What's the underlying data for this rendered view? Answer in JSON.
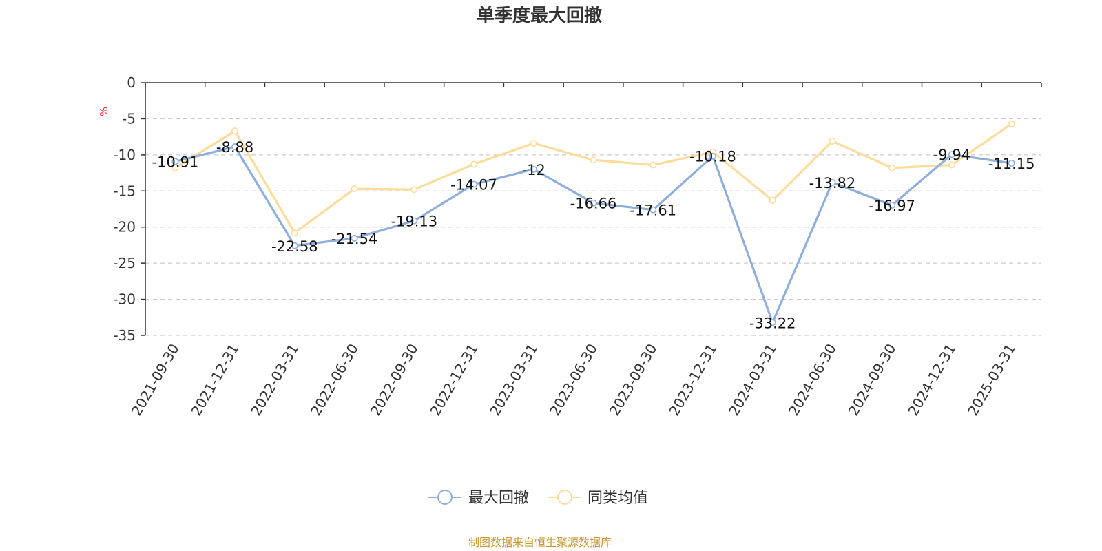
{
  "chart_data": {
    "type": "line",
    "title": "单季度最大回撤",
    "ylabel": "%",
    "ylim": [
      -35,
      0
    ],
    "yticks": [
      0,
      -5,
      -10,
      -15,
      -20,
      -25,
      -30,
      -35
    ],
    "grid": true,
    "legend_position": "bottom-center",
    "categories": [
      "2021-09-30",
      "2021-12-31",
      "2022-03-31",
      "2022-06-30",
      "2022-09-30",
      "2022-12-31",
      "2023-03-31",
      "2023-06-30",
      "2023-09-30",
      "2023-12-31",
      "2024-03-31",
      "2024-06-30",
      "2024-09-30",
      "2024-12-31",
      "2025-03-31"
    ],
    "series": [
      {
        "name": "最大回撤",
        "color": "#8eaedb",
        "values": [
          -10.91,
          -8.88,
          -22.58,
          -21.54,
          -19.13,
          -14.07,
          -12,
          -16.66,
          -17.61,
          -10.18,
          -33.22,
          -13.82,
          -16.97,
          -9.94,
          -11.15
        ],
        "labels": [
          "-10.91",
          "-8.88",
          "-22.58",
          "-21.54",
          "-19.13",
          "-14.07",
          "-12",
          "-16.66",
          "-17.61",
          "-10.18",
          "-33.22",
          "-13.82",
          "-16.97",
          "-9.94",
          "-11.15"
        ]
      },
      {
        "name": "同类均值",
        "color": "#fbdc9a",
        "values": [
          -11.8,
          -6.7,
          -20.8,
          -14.7,
          -14.8,
          -11.3,
          -8.4,
          -10.7,
          -11.4,
          -9.6,
          -16.3,
          -8.1,
          -11.8,
          -11.4,
          -5.7
        ]
      }
    ],
    "source": "制图数据来自恒生聚源数据库"
  }
}
